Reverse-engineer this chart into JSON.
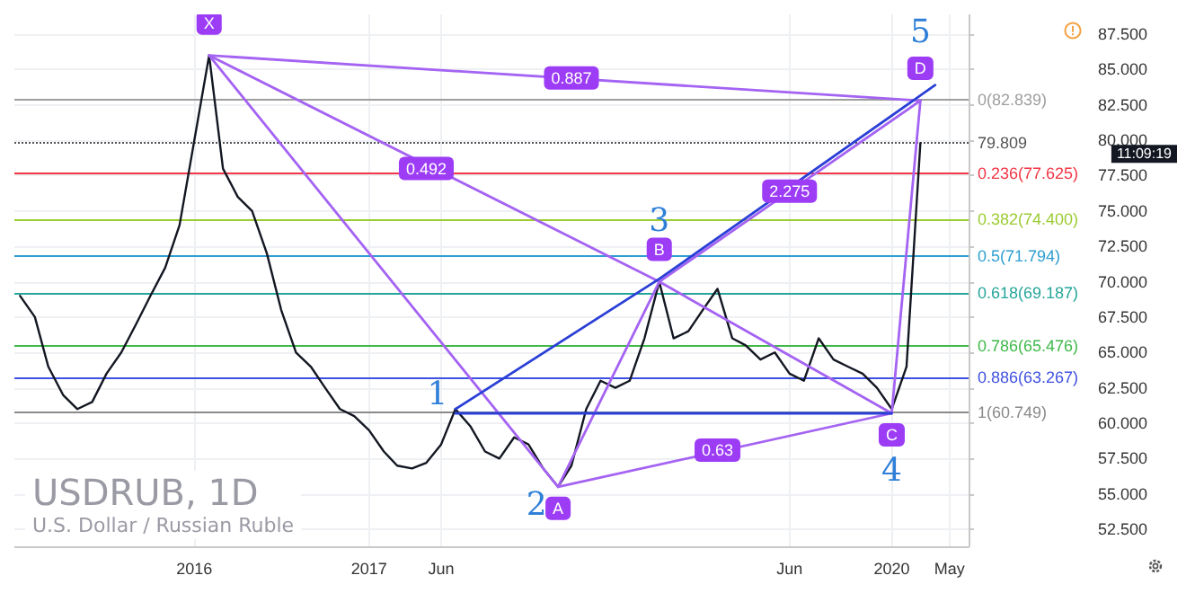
{
  "chart_data": {
    "type": "line",
    "title": "USDRUB, 1D",
    "subtitle": "U.S. Dollar / Russian Ruble",
    "x": [
      "2015-01",
      "2015-02",
      "2015-03",
      "2015-04",
      "2015-05",
      "2015-06",
      "2015-07",
      "2015-08",
      "2015-09",
      "2015-10",
      "2015-11",
      "2015-12",
      "2016-01",
      "2016-02",
      "2016-03",
      "2016-04",
      "2016-05",
      "2016-06",
      "2016-07",
      "2016-08",
      "2016-09",
      "2016-10",
      "2016-11",
      "2016-12",
      "2017-01",
      "2017-02",
      "2017-03",
      "2017-04",
      "2017-05",
      "2017-06",
      "2017-07",
      "2017-08",
      "2017-09",
      "2017-10",
      "2017-11",
      "2017-12",
      "2018-01",
      "2018-02",
      "2018-03",
      "2018-04",
      "2018-05",
      "2018-06",
      "2018-07",
      "2018-08",
      "2018-09",
      "2018-10",
      "2018-11",
      "2018-12",
      "2019-01",
      "2019-02",
      "2019-03",
      "2019-04",
      "2019-05",
      "2019-06",
      "2019-07",
      "2019-08",
      "2019-09",
      "2019-10",
      "2019-11",
      "2019-12",
      "2020-01",
      "2020-02",
      "2020-03"
    ],
    "series": [
      {
        "color": "#131722",
        "values": [
          69,
          67.5,
          64,
          62,
          61,
          61.5,
          63.5,
          65,
          67,
          69,
          71,
          74,
          80,
          86,
          78,
          76,
          75,
          72,
          68,
          65,
          64,
          62.5,
          61,
          60.5,
          59.5,
          58,
          57,
          56.8,
          57.2,
          58.5,
          61,
          59.8,
          58,
          57.5,
          59,
          58.5,
          56.8,
          55.5,
          57,
          61,
          63,
          62.5,
          63,
          66,
          70,
          66,
          66.5,
          68,
          69.5,
          66,
          65.5,
          64.5,
          65,
          63.5,
          63,
          66,
          64.5,
          64,
          63.5,
          62.5,
          61,
          64,
          79.8
        ]
      },
      {
        "color": "#a463f2",
        "x": [
          "2016-02",
          "2018-02",
          "2018-09",
          "2020-01",
          "2020-03"
        ],
        "values": [
          86,
          55.5,
          70,
          60.7,
          82.8
        ]
      },
      {
        "color": "#a463f2",
        "x": [
          "2016-02",
          "2018-09"
        ],
        "values": [
          86,
          70
        ]
      },
      {
        "color": "#a463f2",
        "x": [
          "2016-02",
          "2020-03"
        ],
        "values": [
          86,
          82.8
        ]
      },
      {
        "color": "#a463f2",
        "x": [
          "2018-02",
          "2020-01"
        ],
        "values": [
          55.5,
          60.7
        ]
      },
      {
        "color": "#a463f2",
        "x": [
          "2018-09",
          "2020-03"
        ],
        "values": [
          70,
          82.8
        ]
      },
      {
        "color": "#2a3fd6",
        "x": [
          "2017-07",
          "2020-01"
        ],
        "values": [
          60.7,
          60.7
        ]
      },
      {
        "color": "#2a3fd6",
        "x": [
          "2017-07",
          "2018-09",
          "2020-04"
        ],
        "values": [
          61,
          70.2,
          83.9
        ]
      }
    ],
    "xlim": [
      "2014-12-20",
      "2020-06-10"
    ],
    "xticks": [
      {
        "value": "2016-01",
        "label": "2016"
      },
      {
        "value": "2017-01",
        "label": "2017"
      },
      {
        "value": "2017-06",
        "label": "Jun"
      },
      {
        "value": "2019-06",
        "label": "Jun"
      },
      {
        "value": "2020-01",
        "label": "2020"
      },
      {
        "value": "2020-05",
        "label": "May"
      }
    ],
    "ylim": [
      51.3,
      88.9
    ],
    "yticks": [
      {
        "value": 52.5,
        "label": "52.500"
      },
      {
        "value": 55,
        "label": "55.000"
      },
      {
        "value": 57.5,
        "label": "57.500"
      },
      {
        "value": 60,
        "label": "60.000"
      },
      {
        "value": 62.5,
        "label": "62.500"
      },
      {
        "value": 65,
        "label": "65.000"
      },
      {
        "value": 67.5,
        "label": "67.500"
      },
      {
        "value": 70,
        "label": "70.000"
      },
      {
        "value": 72.5,
        "label": "72.500"
      },
      {
        "value": 75,
        "label": "75.000"
      },
      {
        "value": 77.5,
        "label": "77.500"
      },
      {
        "value": 80,
        "label": "80.000"
      },
      {
        "value": 82.5,
        "label": "82.500"
      },
      {
        "value": 85,
        "label": "85.000"
      },
      {
        "value": 87.5,
        "label": "87.500"
      }
    ],
    "ref_lines": [
      {
        "axis": "y",
        "value": 82.839,
        "label": "0(82.839)",
        "color": "#9e9e9e"
      },
      {
        "axis": "y",
        "value": 79.809,
        "label": "79.809",
        "color": "#555555",
        "line_style": "dotted"
      },
      {
        "axis": "y",
        "value": 77.625,
        "label": "0.236(77.625)",
        "color": "#f23645"
      },
      {
        "axis": "y",
        "value": 74.4,
        "label": "0.382(74.400)",
        "color": "#9ccc33"
      },
      {
        "axis": "y",
        "value": 71.794,
        "label": "0.5(71.794)",
        "color": "#2e9fd0"
      },
      {
        "axis": "y",
        "value": 69.187,
        "label": "0.618(69.187)",
        "color": "#26a69a"
      },
      {
        "axis": "y",
        "value": 65.476,
        "label": "0.786(65.476)",
        "color": "#3fb94a"
      },
      {
        "axis": "y",
        "value": 63.267,
        "label": "0.886(63.267)",
        "color": "#3f51e0"
      },
      {
        "axis": "y",
        "value": 60.749,
        "label": "1(60.749)",
        "color": "#8a8a8a"
      }
    ],
    "annotations": [
      {
        "text": "X",
        "x": "2016-02",
        "y": 86
      },
      {
        "text": "A",
        "x": "2018-02",
        "y": 55.5
      },
      {
        "text": "B",
        "x": "2018-09",
        "y": 70
      },
      {
        "text": "C",
        "x": "2020-01",
        "y": 60.7
      },
      {
        "text": "D",
        "x": "2020-03",
        "y": 82.8
      },
      {
        "text": "0.887",
        "x": "2018-03",
        "y": 84.4
      },
      {
        "text": "0.492",
        "x": "2017-05",
        "y": 78
      },
      {
        "text": "2.275",
        "x": "2019-06",
        "y": 76.4
      },
      {
        "text": "0.63",
        "x": "2019-01",
        "y": 58.1
      },
      {
        "text": "1",
        "x": "2017-07",
        "y": 61
      },
      {
        "text": "2",
        "x": "2018-02",
        "y": 55.5
      },
      {
        "text": "3",
        "x": "2018-09",
        "y": 70
      },
      {
        "text": "4",
        "x": "2020-01",
        "y": 60.7
      },
      {
        "text": "5",
        "x": "2020-03",
        "y": 82.8
      },
      "11:09:19"
    ],
    "grid": true,
    "marker": "none",
    "line_style": "solid"
  }
}
